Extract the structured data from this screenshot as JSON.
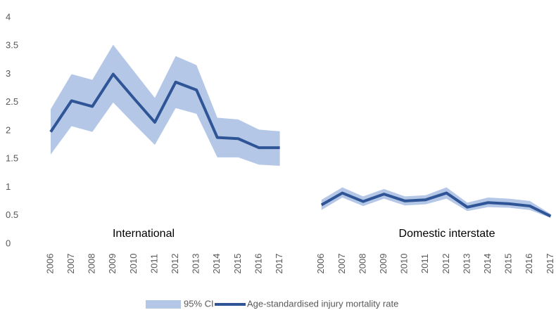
{
  "chart_data": {
    "type": "line",
    "categories": [
      "2006",
      "2007",
      "2008",
      "2009",
      "2010",
      "2011",
      "2012",
      "2013",
      "2014",
      "2015",
      "2016",
      "2017",
      null,
      "2006",
      "2007",
      "2008",
      "2009",
      "2010",
      "2011",
      "2012",
      "2013",
      "2014",
      "2015",
      "2016",
      "2017"
    ],
    "series": [
      {
        "name": "95% CI",
        "kind": "band",
        "color": "#b4c7e7",
        "upper": [
          2.38,
          3.0,
          2.9,
          3.52,
          3.05,
          2.58,
          3.32,
          3.16,
          2.23,
          2.2,
          2.02,
          1.99,
          null,
          0.78,
          1.0,
          0.84,
          0.97,
          0.84,
          0.86,
          1.0,
          0.73,
          0.82,
          0.8,
          0.76,
          0.53
        ],
        "lower": [
          1.58,
          2.08,
          1.98,
          2.5,
          2.12,
          1.75,
          2.4,
          2.3,
          1.53,
          1.53,
          1.4,
          1.38,
          null,
          0.6,
          0.82,
          0.67,
          0.8,
          0.68,
          0.7,
          0.8,
          0.58,
          0.65,
          0.64,
          0.6,
          0.46
        ]
      },
      {
        "name": "Age-standardised injury mortality rate",
        "kind": "line",
        "color": "#2f5597",
        "values": [
          1.98,
          2.53,
          2.43,
          3.0,
          2.57,
          2.15,
          2.86,
          2.72,
          1.88,
          1.86,
          1.7,
          1.7,
          null,
          0.69,
          0.9,
          0.75,
          0.88,
          0.76,
          0.78,
          0.9,
          0.65,
          0.73,
          0.71,
          0.67,
          0.49
        ]
      }
    ],
    "annotations": [
      "International",
      "Domestic interstate"
    ],
    "ylim": [
      0,
      4
    ],
    "yticks": [
      0,
      0.5,
      1,
      1.5,
      2,
      2.5,
      3,
      3.5,
      4
    ],
    "grid": false,
    "legend": "bottom"
  }
}
